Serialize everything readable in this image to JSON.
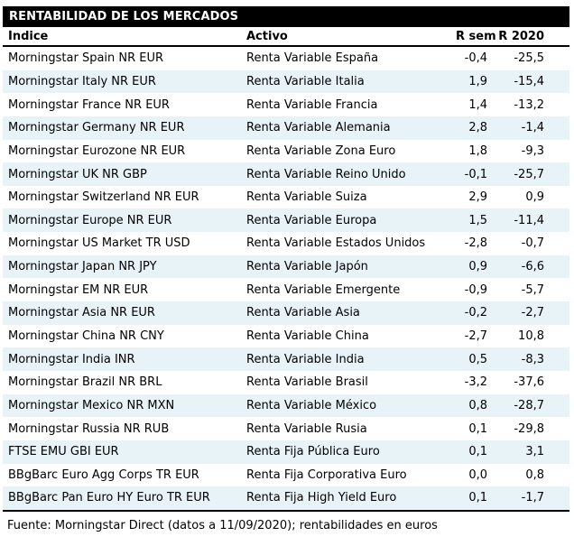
{
  "title": "RENTABILIDAD DE LOS MERCADOS",
  "columns": {
    "indice": "Índice",
    "activo": "Activo",
    "r_sem": "R sem",
    "r_2020": "R 2020"
  },
  "rows": [
    {
      "indice": "Morningstar Spain NR EUR",
      "activo": "Renta Variable España",
      "r_sem": "-0,4",
      "r_2020": "-25,5"
    },
    {
      "indice": "Morningstar Italy NR EUR",
      "activo": "Renta Variable Italia",
      "r_sem": "1,9",
      "r_2020": "-15,4"
    },
    {
      "indice": "Morningstar France NR EUR",
      "activo": "Renta Variable Francia",
      "r_sem": "1,4",
      "r_2020": "-13,2"
    },
    {
      "indice": "Morningstar Germany NR EUR",
      "activo": "Renta Variable Alemania",
      "r_sem": "2,8",
      "r_2020": "-1,4"
    },
    {
      "indice": "Morningstar Eurozone NR EUR",
      "activo": "Renta Variable Zona Euro",
      "r_sem": "1,8",
      "r_2020": "-9,3"
    },
    {
      "indice": "Morningstar UK NR GBP",
      "activo": "Renta Variable Reino Unido",
      "r_sem": "-0,1",
      "r_2020": "-25,7"
    },
    {
      "indice": "Morningstar Switzerland NR EUR",
      "activo": "Renta Variable Suiza",
      "r_sem": "2,9",
      "r_2020": "0,9"
    },
    {
      "indice": "Morningstar Europe NR EUR",
      "activo": "Renta Variable Europa",
      "r_sem": "1,5",
      "r_2020": "-11,4"
    },
    {
      "indice": "Morningstar US Market TR USD",
      "activo": "Renta Variable Estados Unidos",
      "r_sem": "-2,8",
      "r_2020": "-0,7"
    },
    {
      "indice": "Morningstar Japan NR JPY",
      "activo": "Renta Variable Japón",
      "r_sem": "0,9",
      "r_2020": "-6,6"
    },
    {
      "indice": "Morningstar EM NR EUR",
      "activo": "Renta Variable Emergente",
      "r_sem": "-0,9",
      "r_2020": "-5,7"
    },
    {
      "indice": "Morningstar Asia NR EUR",
      "activo": "Renta Variable Asia",
      "r_sem": "-0,2",
      "r_2020": "-2,7"
    },
    {
      "indice": "Morningstar China NR CNY",
      "activo": "Renta Variable China",
      "r_sem": "-2,7",
      "r_2020": "10,8"
    },
    {
      "indice": "Morningstar India INR",
      "activo": "Renta Variable India",
      "r_sem": "0,5",
      "r_2020": "-8,3"
    },
    {
      "indice": "Morningstar Brazil NR BRL",
      "activo": "Renta Variable Brasil",
      "r_sem": "-3,2",
      "r_2020": "-37,6"
    },
    {
      "indice": "Morningstar Mexico NR MXN",
      "activo": "Renta Variable México",
      "r_sem": "0,8",
      "r_2020": "-28,7"
    },
    {
      "indice": "Morningstar Russia NR RUB",
      "activo": "Renta Variable Rusia",
      "r_sem": "0,1",
      "r_2020": "-29,8"
    },
    {
      "indice": "FTSE EMU GBI EUR",
      "activo": "Renta Fija Pública Euro",
      "r_sem": "0,1",
      "r_2020": "3,1"
    },
    {
      "indice": "BBgBarc Euro Agg Corps TR EUR",
      "activo": "Renta Fija Corporativa Euro",
      "r_sem": "0,0",
      "r_2020": "0,8"
    },
    {
      "indice": "BBgBarc Pan Euro HY Euro TR EUR",
      "activo": "Renta Fija High Yield Euro",
      "r_sem": "0,1",
      "r_2020": "-1,7"
    }
  ],
  "footer": "Fuente: Morningstar Direct (datos a 11/09/2020); rentabilidades en euros",
  "colors": {
    "title_bg": "#000000",
    "title_text": "#ffffff",
    "row_alt_bg": "#e8f3f8",
    "text": "#000000"
  }
}
